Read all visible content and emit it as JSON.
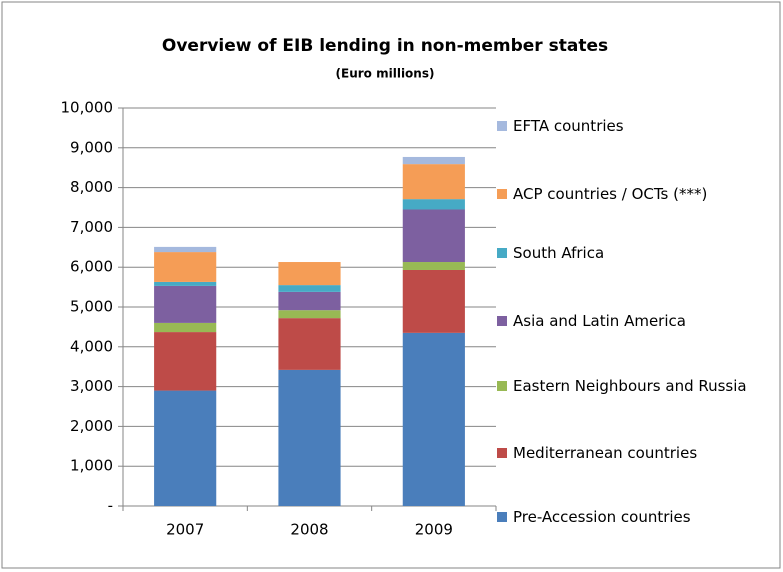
{
  "chart_data": {
    "type": "stacked_bar",
    "title": "Overview of EIB lending in non-member states",
    "subtitle": "(Euro millions)",
    "categories": [
      "2007",
      "2008",
      "2009"
    ],
    "series": [
      {
        "name": "Pre-Accession countries",
        "color": "#4a7ebb",
        "values": [
          2900,
          3420,
          4350
        ]
      },
      {
        "name": "Mediterranean countries",
        "color": "#be4b48",
        "values": [
          1470,
          1300,
          1580
        ]
      },
      {
        "name": "Eastern Neighbours and Russia",
        "color": "#98b954",
        "values": [
          230,
          200,
          200
        ]
      },
      {
        "name": "Asia and Latin America",
        "color": "#7d60a0",
        "values": [
          930,
          460,
          1320
        ]
      },
      {
        "name": "South Africa",
        "color": "#46aac5",
        "values": [
          100,
          170,
          260
        ]
      },
      {
        "name": "ACP countries / OCTs (***)",
        "color": "#f59d56",
        "values": [
          750,
          580,
          880
        ]
      },
      {
        "name": "EFTA countries",
        "color": "#a5b9de",
        "values": [
          130,
          0,
          180
        ]
      }
    ],
    "ylim": [
      0,
      10000
    ],
    "yticks": [
      {
        "value": 0,
        "label": "-"
      },
      {
        "value": 1000,
        "label": "1,000"
      },
      {
        "value": 2000,
        "label": "2,000"
      },
      {
        "value": 3000,
        "label": "3,000"
      },
      {
        "value": 4000,
        "label": "4,000"
      },
      {
        "value": 5000,
        "label": "5,000"
      },
      {
        "value": 6000,
        "label": "6,000"
      },
      {
        "value": 7000,
        "label": "7,000"
      },
      {
        "value": 8000,
        "label": "8,000"
      },
      {
        "value": 9000,
        "label": "9,000"
      },
      {
        "value": 10000,
        "label": "10,000"
      }
    ],
    "grid": true,
    "legend": "right"
  }
}
